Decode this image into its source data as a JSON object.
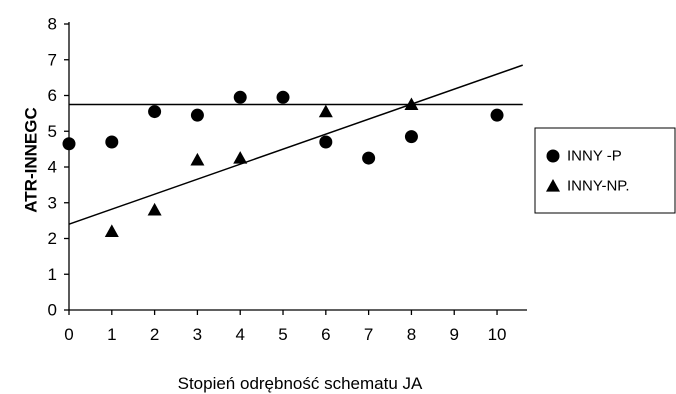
{
  "chart_data": {
    "type": "scatter",
    "xlabel": "Stopień odrębność schematu JA",
    "ylabel": "ATR-INNEGC",
    "xlim": [
      0,
      10.7
    ],
    "ylim": [
      0,
      8
    ],
    "x_ticks": [
      0,
      1,
      2,
      3,
      4,
      5,
      6,
      7,
      8,
      9,
      10
    ],
    "y_ticks": [
      0,
      1,
      2,
      3,
      4,
      5,
      6,
      7,
      8
    ],
    "grid": false,
    "legend_position": "right",
    "series": [
      {
        "name": "INNY -P",
        "marker": "circle",
        "color": "#000000",
        "points": [
          {
            "x": 0,
            "y": 4.65
          },
          {
            "x": 1,
            "y": 4.7
          },
          {
            "x": 2,
            "y": 5.55
          },
          {
            "x": 3,
            "y": 5.45
          },
          {
            "x": 4,
            "y": 5.95
          },
          {
            "x": 5,
            "y": 5.95
          },
          {
            "x": 6,
            "y": 4.7
          },
          {
            "x": 7,
            "y": 4.25
          },
          {
            "x": 8,
            "y": 4.85
          },
          {
            "x": 10,
            "y": 5.45
          }
        ]
      },
      {
        "name": "INNY-NP.",
        "marker": "triangle",
        "color": "#000000",
        "points": [
          {
            "x": 1,
            "y": 2.2
          },
          {
            "x": 2,
            "y": 2.8
          },
          {
            "x": 3,
            "y": 4.2
          },
          {
            "x": 4,
            "y": 4.25
          },
          {
            "x": 6,
            "y": 5.55
          },
          {
            "x": 8,
            "y": 5.75
          }
        ]
      }
    ],
    "trendlines": [
      {
        "series": "INNY -P",
        "x": [
          0,
          10.6
        ],
        "y": [
          5.75,
          5.75
        ]
      },
      {
        "series": "INNY-NP.",
        "x": [
          0,
          10.6
        ],
        "y": [
          2.4,
          6.85
        ]
      }
    ]
  }
}
